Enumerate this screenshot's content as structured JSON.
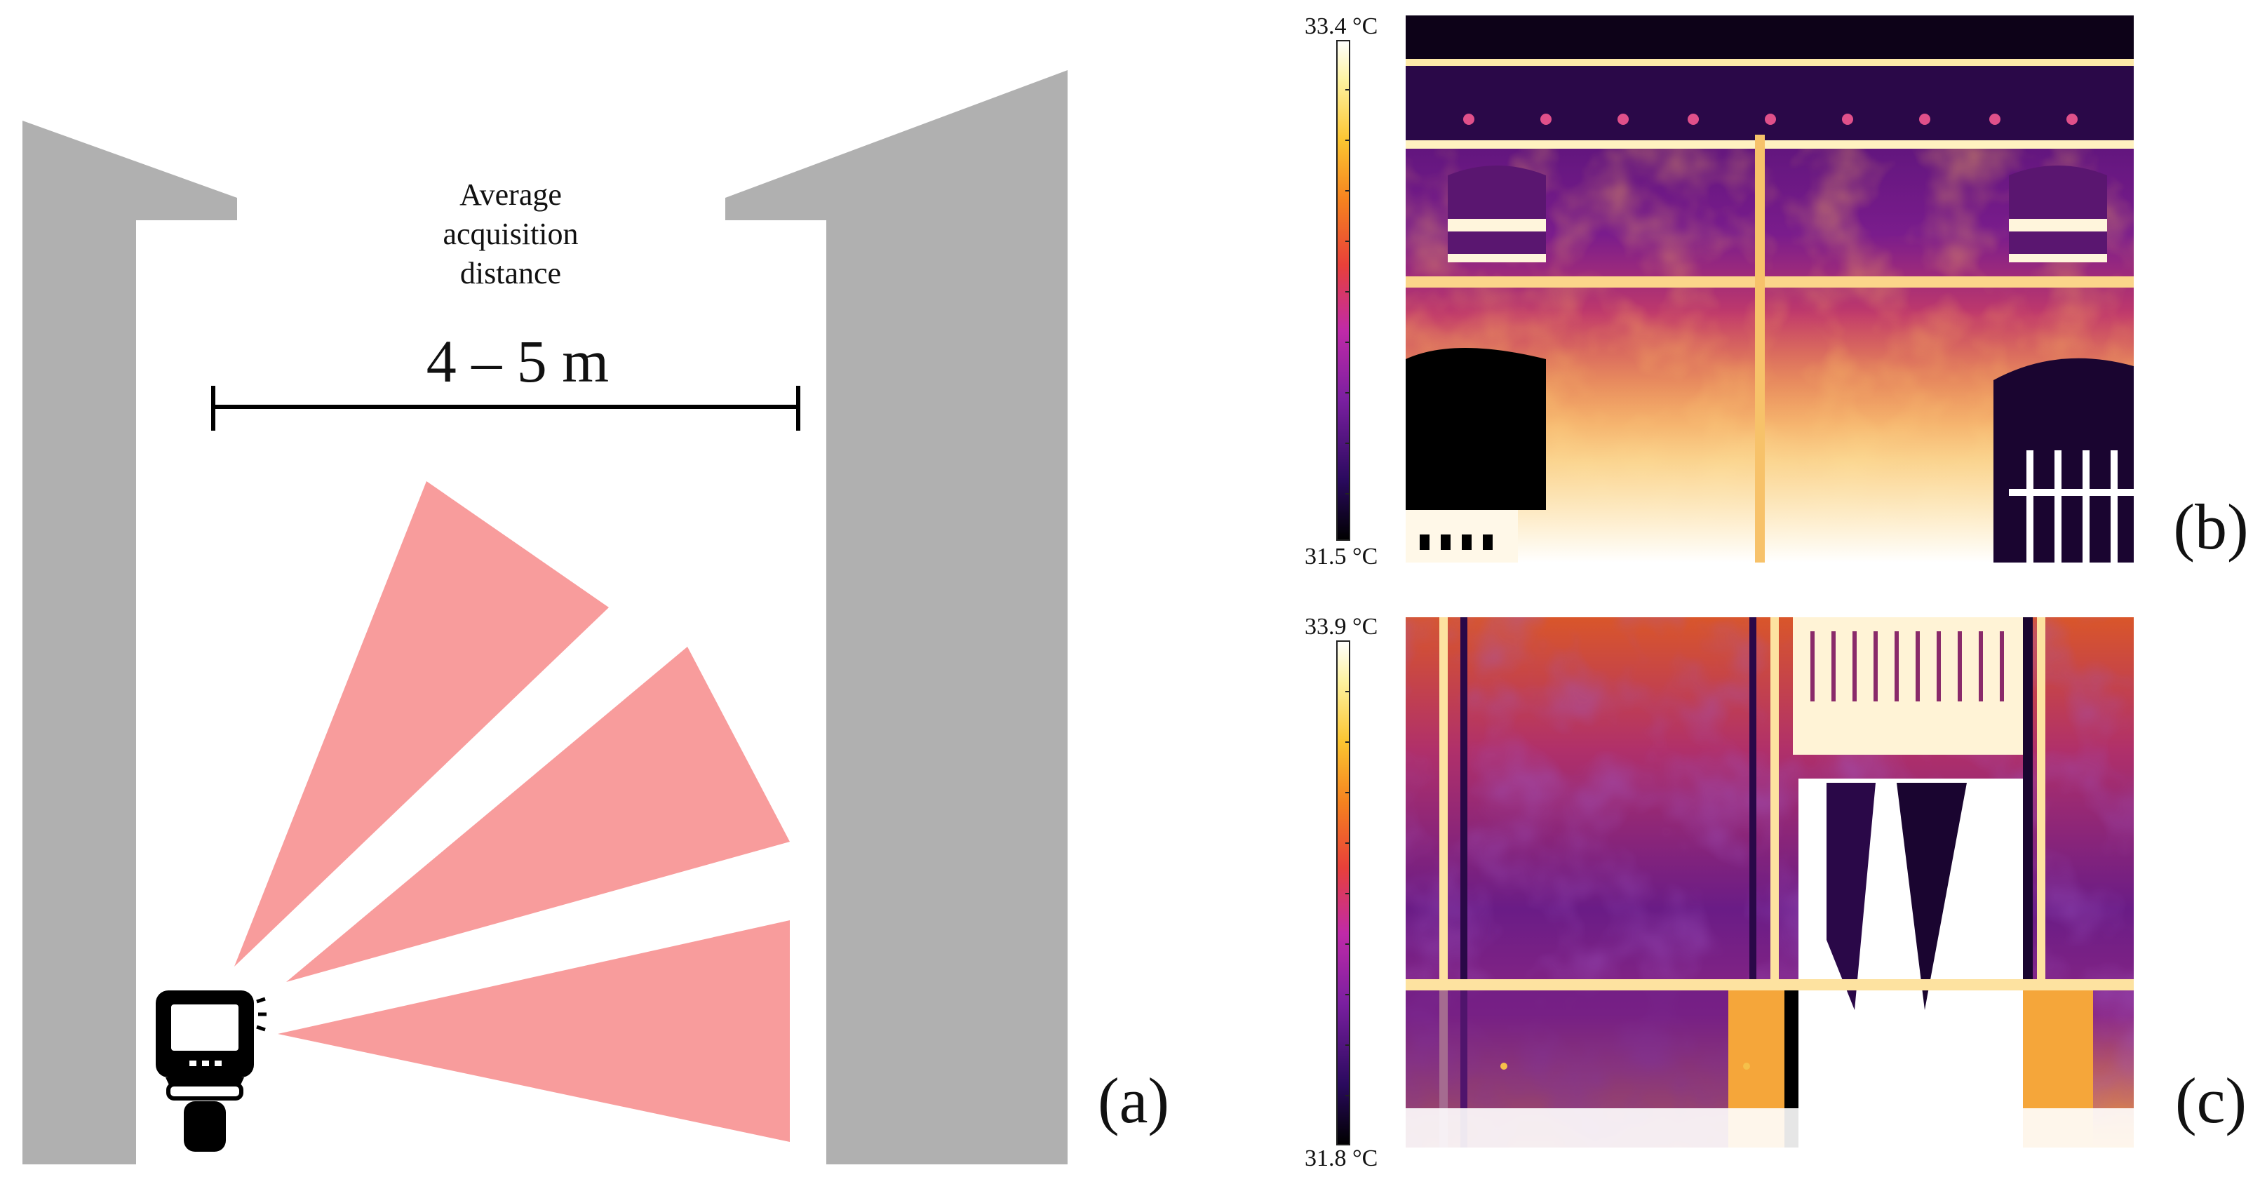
{
  "panel_a": {
    "label": "(a)",
    "caption_line1": "Average",
    "caption_line2": "acquisition",
    "caption_line3": "distance",
    "distance": "4 – 5 m",
    "icon": "thermal-camera-icon",
    "colors": {
      "wall": "#b0b0b0",
      "field_of_view": "#f89c9c",
      "camera": "#000000"
    }
  },
  "panel_b": {
    "label": "(b)",
    "scale_max": "33.4 °C",
    "scale_min": "31.5 °C"
  },
  "panel_c": {
    "label": "(c)",
    "scale_max": "33.9 °C",
    "scale_min": "31.8 °C"
  },
  "palette": {
    "name": "ironbow",
    "stops": [
      "#000000",
      "#2a0a5e",
      "#7a1fa0",
      "#c02aa8",
      "#e8403a",
      "#f5821f",
      "#fbc531",
      "#fdf2a0",
      "#ffffff"
    ]
  }
}
